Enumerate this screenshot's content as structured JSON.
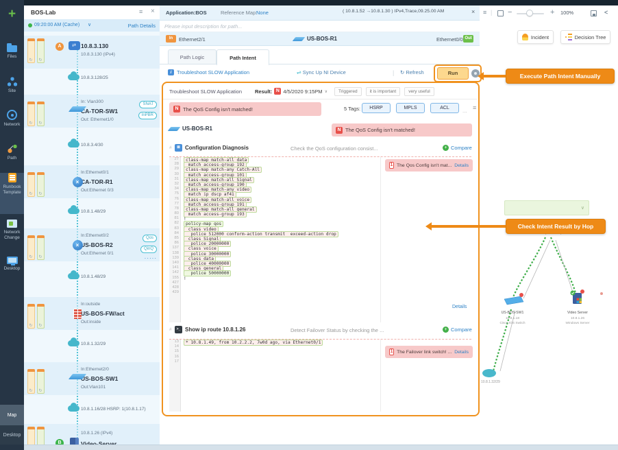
{
  "sidebar": {
    "items": [
      {
        "id": "add",
        "label": "",
        "icon": "plus"
      },
      {
        "id": "files",
        "label": "Files",
        "icon": "folder"
      },
      {
        "id": "site",
        "label": "Site",
        "icon": "site"
      },
      {
        "id": "network",
        "label": "Network",
        "icon": "network"
      },
      {
        "id": "path",
        "label": "Path",
        "icon": "path"
      },
      {
        "id": "runbook-template",
        "label": "Runbook Template",
        "icon": "runbook",
        "active": true
      },
      {
        "id": "network-change",
        "label": "Network Change",
        "icon": "change"
      },
      {
        "id": "desktop",
        "label": "Desktop",
        "icon": "desktop"
      }
    ],
    "bottom": [
      {
        "id": "map",
        "label": "Map"
      },
      {
        "id": "desktop-bottom",
        "label": "Desktop"
      }
    ]
  },
  "path_panel": {
    "title": "BOS-Lab",
    "time": "09:20:00 AM (Cache)",
    "details_link": "Path Details",
    "hops": [
      {
        "kind": "endpoint",
        "marker": "A",
        "name": "10.8.3.130",
        "sub": "10.8.3.130 (IPv4)",
        "icon": "host"
      },
      {
        "kind": "cloud",
        "label": "10.8.3.128/25"
      },
      {
        "kind": "device",
        "icon": "switch",
        "in": "In: Vlan300",
        "name": "CA-TOR-SW1",
        "out": "Out: Ethernet1/0",
        "badges": [
          "SNAT",
          "InPBR"
        ]
      },
      {
        "kind": "cloud",
        "label": "10.8.3.4/30"
      },
      {
        "kind": "device",
        "icon": "router",
        "in": "In:Ethernet0/1",
        "name": "CA-TOR-R1",
        "out": "Out:Ethernet 0/3",
        "badges": []
      },
      {
        "kind": "cloud",
        "label": "10.8.1.48/29"
      },
      {
        "kind": "device",
        "icon": "router",
        "in": "In:Ethernet0/2",
        "name": "US-BOS-R2",
        "out": "Out:Ethernet 0/1",
        "badges": [
          "Qos",
          "QinQ"
        ],
        "more": "·····"
      },
      {
        "kind": "cloud",
        "label": "10.8.1.48/29"
      },
      {
        "kind": "device",
        "icon": "firewall",
        "in": "In:outside",
        "name": "US-BOS-FW/act",
        "out": "Out:inside",
        "badges": []
      },
      {
        "kind": "cloud",
        "label": "10.8.1.32/29"
      },
      {
        "kind": "device",
        "icon": "switch",
        "in": "In:Ethernet2/0",
        "name": "US-BOS-SW1",
        "out": "Out:Vlan101",
        "badges": []
      },
      {
        "kind": "cloud",
        "label": "10.8.1.16/28 HSRP: 1(10.8.1.17)"
      },
      {
        "kind": "endpoint",
        "marker": "B",
        "name": "Video-Server",
        "sub": "10.8.1.26 (IPv4)",
        "icon": "server",
        "subFirst": true
      }
    ]
  },
  "main": {
    "app_title": "Application:BOS",
    "ref_label": "Reference Map:",
    "ref_value": "None",
    "trace_tab": "( 10.8.1.52  →10.8.1.30 )  IPv4,Trace,09.25.00 AM",
    "desc_placeholder": "Please input description for path...",
    "endpoint": {
      "in_badge": "In",
      "in_if": "Ethernet2/1",
      "device": "US-BOS-R1",
      "out_if": "Ethernet0/0",
      "out_badge": "Out"
    },
    "tabs": [
      "Path Logic",
      "Path Intent"
    ],
    "intent": {
      "link": "Troubleshoot SLOW Application",
      "sync": "Sync Up NI Device",
      "refresh": "Refresh",
      "run": "Run"
    },
    "toolbar": {
      "zoom": "100%"
    }
  },
  "panel": {
    "title": "Troubleshoot SLOW Application",
    "result_label": "Result:",
    "result_badge": "N",
    "result_date": "4/5/2020 9:15PM",
    "chips": [
      "Triggered",
      "it is important",
      "very useful"
    ],
    "alert_badge": "N",
    "alert": "The QoS Config isn't matched!",
    "tags_label": "5 Tags:",
    "tags": [
      "HSRP",
      "MPLS",
      "ACL"
    ],
    "tags_more": "...",
    "device": "US-BOS-R1",
    "device_alert": "The QoS Config isn't matched!",
    "sections": [
      {
        "title": "Configuration Diagnosis",
        "desc": "Check the QoS configuration consist...",
        "compare": "Compare",
        "alert_badge": "1",
        "alert": "The Qos Config isn't mat...",
        "alert_link": "Details",
        "footer_link": "Details",
        "code": [
          [
            27,
            "class-map match-all data",
            "r"
          ],
          [
            28,
            " match access-group 192",
            "r"
          ],
          [
            29,
            "class-map match-any Catch-All",
            "r"
          ],
          [
            30,
            " match access-group 101",
            "r"
          ],
          [
            31,
            "class-map match-all Signal",
            "r"
          ],
          [
            32,
            " match access-group 190",
            "r"
          ],
          [
            34,
            "class-map match-any video",
            "r"
          ],
          [
            75,
            " match ip dscp af41",
            "r"
          ],
          [
            76,
            "class-map match-all voice",
            "r"
          ],
          [
            77,
            " match access-group 191",
            "r"
          ],
          [
            78,
            "class-map match-all general",
            "r"
          ],
          [
            80,
            " match access-group 193",
            "r"
          ],
          [
            81,
            "!",
            ""
          ],
          [
            82,
            "policy-map qos",
            "g"
          ],
          [
            83,
            " class video",
            "r"
          ],
          [
            84,
            "  police 512000 conform-action transmit  exceed-action drop",
            "r"
          ],
          [
            85,
            " class Signal",
            "r"
          ],
          [
            86,
            "  police 20000000",
            "r"
          ],
          [
            137,
            " class voice",
            "r"
          ],
          [
            138,
            "  police 30000000",
            "r"
          ],
          [
            139,
            " class data",
            "r"
          ],
          [
            140,
            "  police 40000000",
            "r"
          ],
          [
            141,
            " class general",
            "r"
          ],
          [
            142,
            "  police 50000000",
            "g"
          ],
          [
            155,
            "!",
            ""
          ],
          [
            427,
            "",
            ""
          ],
          [
            428,
            "",
            ""
          ],
          [
            429,
            "",
            ""
          ]
        ]
      },
      {
        "title": "Show ip route 10.8.1.26",
        "desc": "Detect Failover Status by checking the ...",
        "compare": "Compare",
        "alert_badge": "1",
        "alert": "The Failover link switch! ...",
        "alert_link": "Details",
        "footer_link": "",
        "code": [
          [
            13,
            "* 10.8.1.49, from 10.2.2.2, 7w0d ago, via Ethernet0/1",
            "r"
          ],
          [
            14,
            "",
            ""
          ],
          [
            15,
            "",
            ""
          ],
          [
            16,
            "",
            ""
          ],
          [
            17,
            "",
            ""
          ]
        ]
      }
    ]
  },
  "canvas": {
    "incident": "Incident",
    "decision_tree": "Decision Tree",
    "annotations": [
      "Execute Path Intent Manually",
      "Check Intent Result by Hop"
    ],
    "map": {
      "hsrp_label": "HSRP: 1(10.8.1.17)",
      "cloud_label": "10.8.1.32/29",
      "nodes": [
        {
          "name": "US-BOS-SW1",
          "ip": "10.8.1.18",
          "type": "Cisco IOS Switch"
        },
        {
          "name": "Video Server",
          "ip": "10.8.1.26",
          "type": "Windows Server"
        }
      ]
    }
  }
}
